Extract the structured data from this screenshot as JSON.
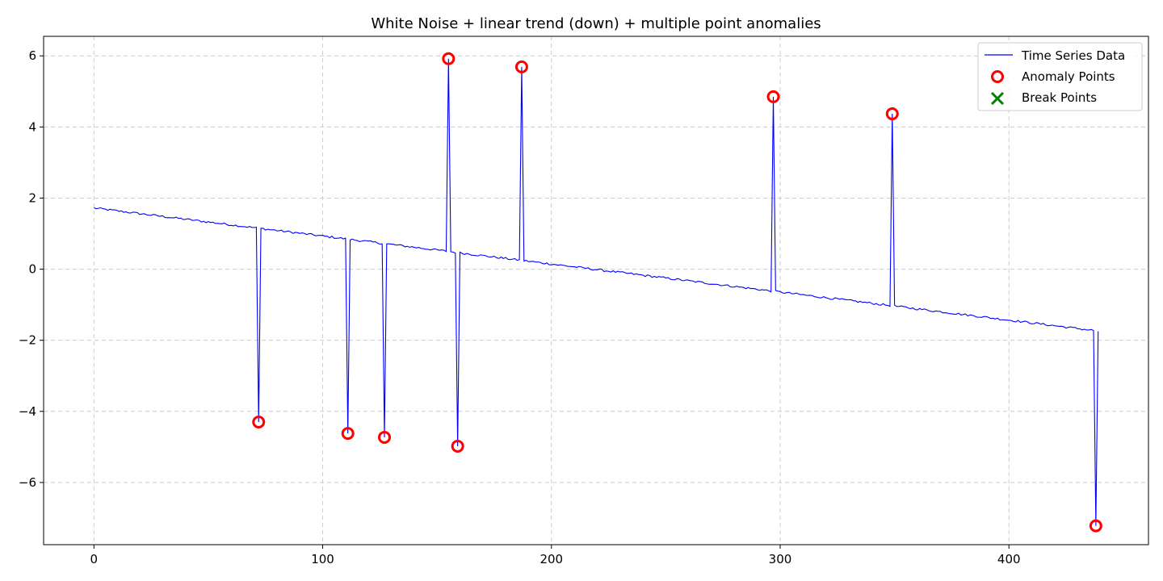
{
  "chart_data": {
    "type": "line",
    "title": "White Noise + linear trend (down) + multiple point anomalies",
    "xlabel": "",
    "ylabel": "",
    "xlim": [
      -22,
      461
    ],
    "ylim": [
      -7.75,
      6.55
    ],
    "grid": true,
    "grid_style": "dashed",
    "legend_position": "top-right",
    "x_ticks": [
      0,
      100,
      200,
      300,
      400
    ],
    "y_ticks": [
      -6,
      -4,
      -2,
      0,
      2,
      4,
      6
    ],
    "x_tick_labels": [
      "0",
      "100",
      "200",
      "300",
      "400"
    ],
    "y_tick_labels": [
      "−6",
      "−4",
      "−2",
      "0",
      "2",
      "4",
      "6"
    ],
    "colors": {
      "series": "#0000ff",
      "anomaly": "#ff0000",
      "break": "#008000",
      "grid": "#cccccc",
      "axes": "#000000"
    },
    "trend": {
      "start_x": 0,
      "end_x": 439,
      "start_y": 1.72,
      "end_y": -1.74,
      "noise_amplitude": 0.03
    },
    "series": [
      {
        "name": "Time Series Data",
        "kind": "line",
        "length": 440
      },
      {
        "name": "Anomaly Points",
        "kind": "marker-circle",
        "points": [
          {
            "x": 72,
            "y": -4.3
          },
          {
            "x": 111,
            "y": -4.62
          },
          {
            "x": 127,
            "y": -4.73
          },
          {
            "x": 155,
            "y": 5.92
          },
          {
            "x": 159,
            "y": -4.98
          },
          {
            "x": 187,
            "y": 5.69
          },
          {
            "x": 297,
            "y": 4.85
          },
          {
            "x": 349,
            "y": 4.37
          },
          {
            "x": 438,
            "y": -7.22
          }
        ]
      },
      {
        "name": "Break Points",
        "kind": "marker-x",
        "points": []
      }
    ]
  }
}
